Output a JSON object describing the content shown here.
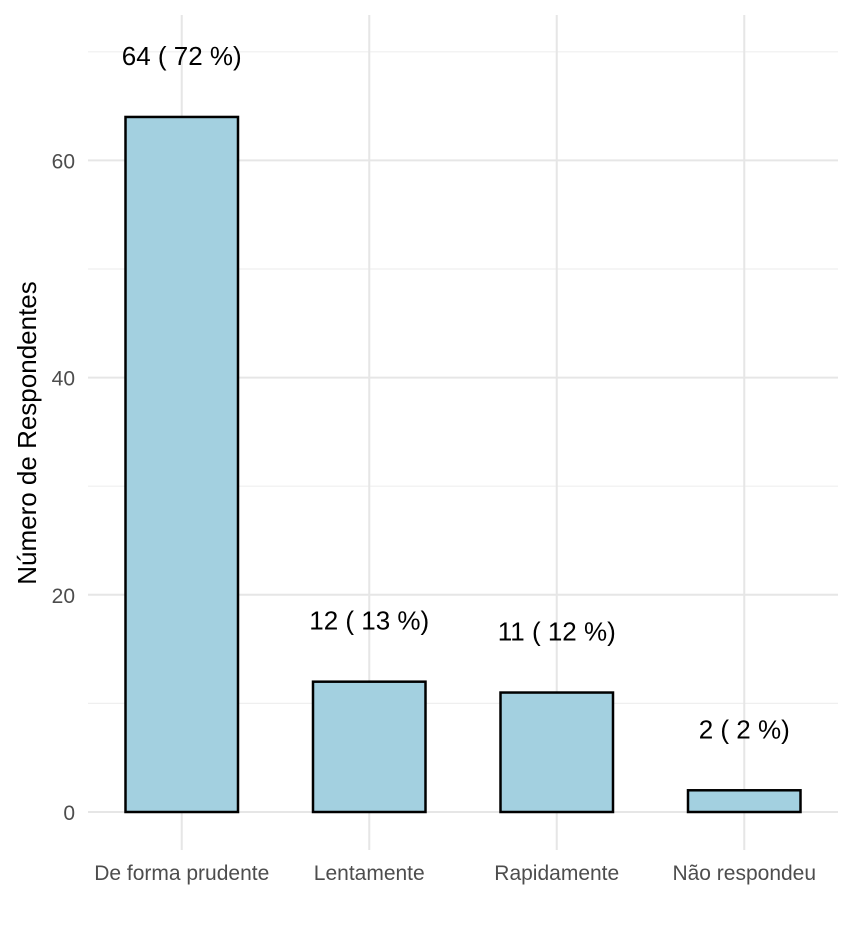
{
  "chart_data": {
    "type": "bar",
    "title": "",
    "xlabel": "",
    "ylabel": "Número de Respondentes",
    "categories": [
      "De forma prudente",
      "Lentamente",
      "Rapidamente",
      "Não respondeu"
    ],
    "values": [
      64,
      12,
      11,
      2
    ],
    "data_labels": [
      "64  ( 72 %)",
      "12  ( 13 %)",
      "11  ( 12 %)",
      "2  ( 2 %)"
    ],
    "ylim": [
      0,
      73
    ],
    "y_ticks": [
      0,
      20,
      40,
      60
    ],
    "y_tick_labels": [
      "0",
      "20",
      "40",
      "60"
    ],
    "grid": true,
    "legend": "none",
    "colors": {
      "bar_fill": "#a3d0e0",
      "bar_stroke": "#000000"
    }
  }
}
